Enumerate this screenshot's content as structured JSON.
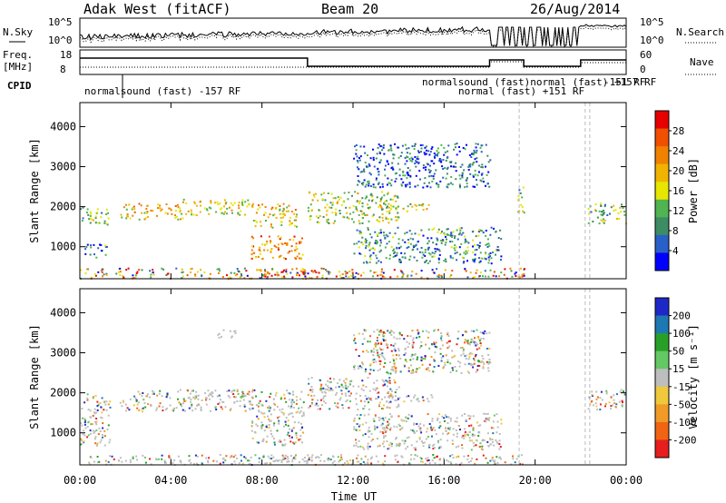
{
  "header": {
    "station": "Adak West (fitACF)",
    "beam": "Beam 20",
    "date": "26/Aug/2014"
  },
  "top_panels": {
    "nsky_label": "N.Sky",
    "nsearch_label": "N.Search",
    "noise_ticks": [
      "10^5",
      "10^0"
    ],
    "freq_label": "Freq.",
    "freq_unit": "[MHz]",
    "freq_ticks": [
      "18",
      "8"
    ],
    "nave_label": "Nave",
    "nave_ticks": [
      "60",
      "0"
    ],
    "cpid_label": "CPID",
    "cpid_labels": [
      "normalsound (fast) -157 RF",
      "normalsound (fast)normal (fast) +157 RF",
      "normal (fast) +151 RF",
      "-151 RF"
    ]
  },
  "colors": {
    "power_scale": [
      "#0000ff",
      "#2860c8",
      "#3c8c64",
      "#50b450",
      "#e6e600",
      "#f0b400",
      "#f08200",
      "#f05000",
      "#e60000"
    ],
    "velocity_scale": [
      "#1e28c8",
      "#1e78b4",
      "#28a028",
      "#64c864",
      "#bebebe",
      "#f0c83c",
      "#f09b28",
      "#f06414",
      "#e61e1e"
    ]
  },
  "chart_data": [
    {
      "type": "heatmap",
      "panel": "power",
      "ylabel": "Slant Range [km]",
      "xlabel": "Time UT",
      "x_ticks": [
        "00:00",
        "04:00",
        "08:00",
        "12:00",
        "16:00",
        "20:00",
        "00:00"
      ],
      "y_ticks": [
        "1000",
        "2000",
        "3000",
        "4000"
      ],
      "ylim": [
        200,
        4600
      ],
      "colorbar_label": "Power [dB]",
      "colorbar_ticks": [
        "4",
        "8",
        "12",
        "16",
        "20",
        "24",
        "28"
      ],
      "scatter_bands": [
        {
          "t0": 0.0,
          "t1": 1.3,
          "r0": 1550,
          "r1": 2000,
          "level": 0.35
        },
        {
          "t0": 0.2,
          "t1": 1.2,
          "r0": 750,
          "r1": 1100,
          "level": 0.2
        },
        {
          "t0": 1.7,
          "t1": 4.5,
          "r0": 1700,
          "r1": 2100,
          "level": 0.6
        },
        {
          "t0": 4.5,
          "t1": 7.5,
          "r0": 1800,
          "r1": 2200,
          "level": 0.55
        },
        {
          "t0": 7.5,
          "t1": 9.5,
          "r0": 1500,
          "r1": 2100,
          "level": 0.6
        },
        {
          "t0": 7.5,
          "t1": 9.8,
          "r0": 700,
          "r1": 1300,
          "level": 0.75
        },
        {
          "t0": 8.0,
          "t1": 10.5,
          "r0": 250,
          "r1": 450,
          "level": 0.95
        },
        {
          "t0": 10.0,
          "t1": 14.0,
          "r0": 1600,
          "r1": 2400,
          "level": 0.45
        },
        {
          "t0": 12.0,
          "t1": 18.5,
          "r0": 600,
          "r1": 1500,
          "level": 0.25
        },
        {
          "t0": 13.5,
          "t1": 15.5,
          "r0": 1900,
          "r1": 2100,
          "level": 0.5
        },
        {
          "t0": 12.0,
          "t1": 18.0,
          "r0": 2500,
          "r1": 3600,
          "level": 0.15
        },
        {
          "t0": 19.2,
          "t1": 19.5,
          "r0": 1800,
          "r1": 2500,
          "level": 0.4
        },
        {
          "t0": 22.3,
          "t1": 24.0,
          "r0": 1600,
          "r1": 2100,
          "level": 0.4
        }
      ]
    },
    {
      "type": "heatmap",
      "panel": "velocity",
      "ylabel": "Slant Range [km]",
      "xlabel": "Time UT",
      "x_ticks": [
        "00:00",
        "04:00",
        "08:00",
        "12:00",
        "16:00",
        "20:00",
        "00:00"
      ],
      "y_ticks": [
        "1000",
        "2000",
        "3000",
        "4000"
      ],
      "ylim": [
        200,
        4600
      ],
      "colorbar_label": "Velocity [m s⁻¹]",
      "colorbar_ticks": [
        "200",
        "100",
        "50",
        "15",
        "-15",
        "-50",
        "-100",
        "-200"
      ],
      "scatter_bands": [
        {
          "t0": 0.0,
          "t1": 1.3,
          "r0": 700,
          "r1": 2000,
          "level": 0.5
        },
        {
          "t0": 1.7,
          "t1": 7.5,
          "r0": 1550,
          "r1": 2100,
          "level": 0.5
        },
        {
          "t0": 7.5,
          "t1": 9.8,
          "r0": 700,
          "r1": 2100,
          "level": 0.5
        },
        {
          "t0": 8.0,
          "t1": 10.5,
          "r0": 250,
          "r1": 450,
          "level": 0.9
        },
        {
          "t0": 6.0,
          "t1": 7.0,
          "r0": 3400,
          "r1": 3600,
          "level": 0.9
        },
        {
          "t0": 10.0,
          "t1": 14.0,
          "r0": 1600,
          "r1": 2400,
          "level": 0.5
        },
        {
          "t0": 12.5,
          "t1": 15.5,
          "r0": 1800,
          "r1": 2000,
          "level": 0.7
        },
        {
          "t0": 12.0,
          "t1": 18.5,
          "r0": 600,
          "r1": 1500,
          "level": 0.6
        },
        {
          "t0": 12.0,
          "t1": 18.0,
          "r0": 2500,
          "r1": 3600,
          "level": 0.3
        },
        {
          "t0": 22.3,
          "t1": 24.0,
          "r0": 1600,
          "r1": 2100,
          "level": 0.5
        }
      ]
    }
  ]
}
